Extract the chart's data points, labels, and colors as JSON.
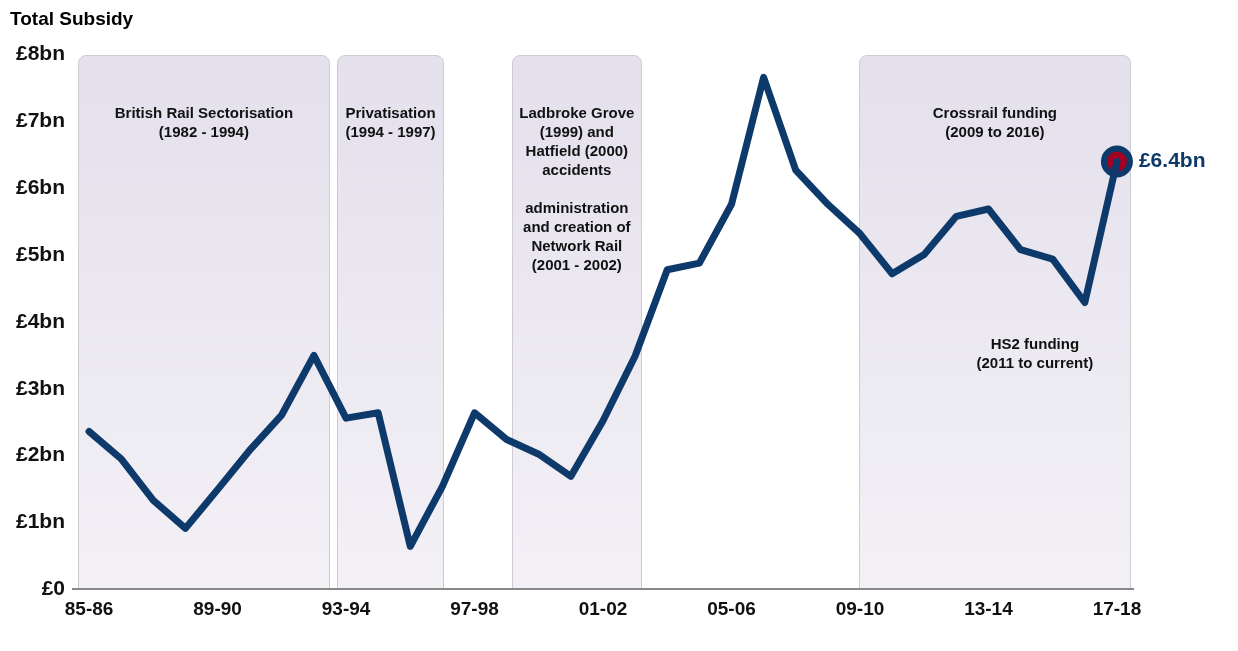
{
  "chart_data": {
    "type": "line",
    "title": "Total Subsidy",
    "categories": [
      "85-86",
      null,
      null,
      null,
      "89-90",
      null,
      null,
      null,
      "93-94",
      null,
      null,
      null,
      "97-98",
      null,
      null,
      null,
      "01-02",
      null,
      null,
      null,
      "05-06",
      null,
      null,
      null,
      "09-10",
      null,
      null,
      null,
      "13-14",
      null,
      null,
      null,
      "17-18"
    ],
    "ylim": [
      0,
      8
    ],
    "yticks": [
      {
        "value": 0,
        "label": "£0"
      },
      {
        "value": 1,
        "label": "£1bn"
      },
      {
        "value": 2,
        "label": "£2bn"
      },
      {
        "value": 3,
        "label": "£3bn"
      },
      {
        "value": 4,
        "label": "£4bn"
      },
      {
        "value": 5,
        "label": "£5bn"
      },
      {
        "value": 6,
        "label": "£6bn"
      },
      {
        "value": 7,
        "label": "£7bn"
      },
      {
        "value": 8,
        "label": "£8bn"
      }
    ],
    "series": [
      {
        "type": "line",
        "color": "#0d3a6b",
        "marker": "none",
        "values": [
          2.36,
          1.95,
          1.33,
          0.91,
          1.49,
          2.08,
          2.61,
          3.5,
          2.56,
          2.64,
          0.64,
          1.54,
          2.64,
          2.24,
          2.02,
          1.69,
          2.52,
          3.49,
          4.78,
          4.88,
          5.76,
          7.66,
          6.27,
          5.76,
          5.32,
          4.72,
          5.01,
          5.58,
          5.69,
          5.08,
          4.94,
          4.29,
          6.4
        ],
        "value_labels": [
          null,
          null,
          null,
          null,
          null,
          null,
          null,
          null,
          null,
          null,
          null,
          null,
          null,
          null,
          null,
          null,
          null,
          null,
          null,
          null,
          null,
          null,
          null,
          null,
          null,
          null,
          null,
          null,
          null,
          null,
          null,
          null,
          "£6.4bn"
        ]
      },
      {
        "type": "scatter",
        "color": "#a50021",
        "marker": "circle",
        "x": [
          "17-18"
        ],
        "values": [
          6.4
        ]
      }
    ],
    "annotations": [
      "British Rail Sectorisation\n(1982 - 1994)",
      "Privatisation\n(1994 - 1997)",
      "Ladbroke Grove\n(1999) and\nHatfield (2000)\naccidents\n\nadministration\nand creation of\nNetwork Rail\n(2001 - 2002)",
      "Crossrail funding\n(2009 to 2016)",
      "HS2 funding\n(2011 to current)"
    ],
    "grid": false,
    "legend": false
  }
}
